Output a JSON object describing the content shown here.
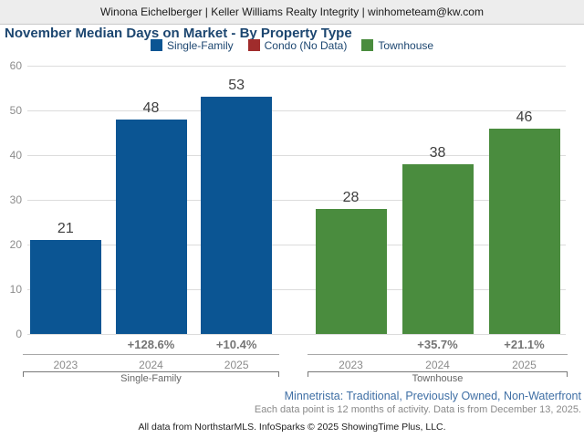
{
  "header": {
    "agent_line": "Winona Eichelberger | Keller Williams Realty Integrity | winhometeam@kw.com"
  },
  "chart": {
    "title": "November Median Days on Market - By Property Type",
    "legend": [
      {
        "label": "Single-Family",
        "color": "#0b5593"
      },
      {
        "label": "Condo (No Data)",
        "color": "#a02c2c"
      },
      {
        "label": "Townhouse",
        "color": "#4a8c3e"
      }
    ]
  },
  "chart_data": {
    "type": "bar",
    "title": "November Median Days on Market - By Property Type",
    "ylabel": "",
    "ylim": [
      0,
      60
    ],
    "yticks": [
      0,
      10,
      20,
      30,
      40,
      50,
      60
    ],
    "grid": true,
    "legend_position": "top",
    "categories": [
      "2023",
      "2024",
      "2025"
    ],
    "groups": [
      {
        "name": "Single-Family",
        "color": "#0b5593",
        "categories": [
          "2023",
          "2024",
          "2025"
        ],
        "values": [
          21,
          48,
          53
        ],
        "pct_change": [
          "",
          "+128.6%",
          "+10.4%"
        ]
      },
      {
        "name": "Townhouse",
        "color": "#4a8c3e",
        "categories": [
          "2023",
          "2024",
          "2025"
        ],
        "values": [
          28,
          38,
          46
        ],
        "pct_change": [
          "",
          "+35.7%",
          "+21.1%"
        ]
      }
    ],
    "no_data_series": "Condo (No Data)"
  },
  "footer": {
    "filters": "Minnetrista: Traditional, Previously Owned, Non-Waterfront",
    "data_note": "Each data point is 12 months of activity. Data is from December 13, 2025.",
    "credit": "All data from NorthstarMLS. InfoSparks © 2025 ShowingTime Plus, LLC."
  }
}
